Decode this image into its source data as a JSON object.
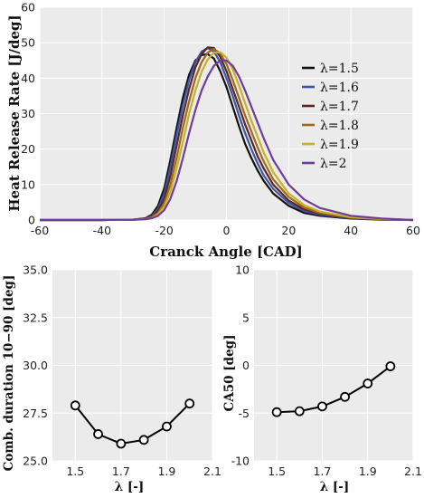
{
  "chart_data": [
    {
      "type": "line",
      "title": "",
      "xlabel": "Cranck Angle [CAD]",
      "ylabel": "Heat Release Rate [J/deg]",
      "xlim": [
        -60,
        60
      ],
      "ylim": [
        0,
        60
      ],
      "xticks": [
        "-60",
        "-40",
        "-20",
        "0",
        "20",
        "40",
        "60"
      ],
      "yticks": [
        "0",
        "10",
        "20",
        "30",
        "40",
        "50",
        "60"
      ],
      "grid": true,
      "legend_position": "right",
      "series": [
        {
          "name": "λ=1.5",
          "color": "#111111",
          "x": [
            -60,
            -40,
            -30,
            -26,
            -24,
            -22,
            -20,
            -18,
            -16,
            -14,
            -12,
            -10,
            -8,
            -6,
            -4,
            -2,
            0,
            2,
            4,
            6,
            8,
            10,
            12,
            15,
            20,
            25,
            30,
            40,
            50,
            60
          ],
          "y": [
            0,
            0,
            0.1,
            0.5,
            1.5,
            4,
            9,
            17,
            26,
            34.5,
            41,
            45,
            46.5,
            46.8,
            45.5,
            42,
            37.5,
            32,
            26.5,
            21.5,
            17.5,
            14,
            11,
            7.5,
            4,
            2,
            1.2,
            0.4,
            0.1,
            0
          ]
        },
        {
          "name": "λ=1.6",
          "color": "#3d55a8",
          "x": [
            -60,
            -40,
            -30,
            -26,
            -24,
            -22,
            -20,
            -18,
            -16,
            -14,
            -12,
            -10,
            -8,
            -6,
            -4,
            -2,
            0,
            2,
            4,
            6,
            8,
            10,
            12,
            15,
            20,
            25,
            30,
            40,
            50,
            60
          ],
          "y": [
            0,
            0,
            0.1,
            0.4,
            1.2,
            3.2,
            7.5,
            15,
            24,
            32.5,
            39.5,
            44.5,
            47.5,
            48.5,
            47.5,
            44.5,
            40,
            35,
            29.5,
            24.5,
            20,
            16,
            12.5,
            8.8,
            4.8,
            2.5,
            1.5,
            0.5,
            0.2,
            0
          ]
        },
        {
          "name": "λ=1.7",
          "color": "#5a2525",
          "x": [
            -60,
            -40,
            -30,
            -26,
            -24,
            -22,
            -20,
            -18,
            -16,
            -14,
            -12,
            -10,
            -8,
            -6,
            -4,
            -2,
            0,
            2,
            4,
            6,
            8,
            10,
            12,
            15,
            20,
            25,
            30,
            40,
            50,
            60
          ],
          "y": [
            0,
            0,
            0.1,
            0.3,
            1,
            2.6,
            6,
            12.5,
            21,
            29.5,
            37,
            43,
            46.8,
            48.7,
            48.5,
            46,
            42,
            37,
            32,
            27,
            22.5,
            18,
            14.5,
            10,
            5.5,
            3,
            1.8,
            0.6,
            0.2,
            0
          ]
        },
        {
          "name": "λ=1.8",
          "color": "#9b6a1a",
          "x": [
            -60,
            -40,
            -30,
            -26,
            -24,
            -22,
            -20,
            -18,
            -16,
            -14,
            -12,
            -10,
            -8,
            -6,
            -4,
            -2,
            0,
            2,
            4,
            6,
            8,
            10,
            12,
            15,
            20,
            25,
            30,
            40,
            50,
            60
          ],
          "y": [
            0,
            0,
            0.1,
            0.3,
            0.8,
            2,
            4.8,
            10,
            17.5,
            26,
            33.5,
            40,
            44.5,
            47.2,
            48.2,
            47,
            44,
            39.5,
            34.5,
            29.5,
            25,
            20.5,
            16.5,
            11.5,
            6.5,
            3.5,
            2,
            0.7,
            0.2,
            0
          ]
        },
        {
          "name": "λ=1.9",
          "color": "#c8b028",
          "x": [
            -60,
            -40,
            -30,
            -26,
            -24,
            -22,
            -20,
            -18,
            -16,
            -14,
            -12,
            -10,
            -8,
            -6,
            -4,
            -2,
            0,
            2,
            4,
            6,
            8,
            10,
            12,
            15,
            20,
            25,
            30,
            40,
            50,
            60
          ],
          "y": [
            0,
            0,
            0.1,
            0.2,
            0.6,
            1.6,
            3.8,
            8,
            14.5,
            22,
            30,
            36.5,
            41.8,
            45.3,
            47.2,
            47.3,
            45.8,
            42.5,
            38,
            33,
            28,
            23.5,
            19,
            13.5,
            7.5,
            4.2,
            2.4,
            0.8,
            0.3,
            0
          ]
        },
        {
          "name": "λ=2",
          "color": "#6e3c99",
          "x": [
            -60,
            -40,
            -30,
            -26,
            -24,
            -22,
            -20,
            -18,
            -16,
            -14,
            -12,
            -10,
            -8,
            -6,
            -4,
            -2,
            0,
            2,
            4,
            6,
            8,
            10,
            12,
            15,
            20,
            25,
            30,
            40,
            50,
            60
          ],
          "y": [
            0,
            0,
            0.1,
            0.2,
            0.5,
            1.2,
            2.8,
            6,
            11,
            17.5,
            24.5,
            31,
            36.5,
            40.5,
            43.5,
            45,
            45,
            43.5,
            40.5,
            36.5,
            32,
            27.5,
            23,
            17,
            10,
            5.8,
            3.4,
            1.2,
            0.4,
            0
          ]
        }
      ]
    },
    {
      "type": "line",
      "title": "",
      "xlabel": "λ [-]",
      "ylabel": "Comb. duration 10−90 [deg]",
      "xlim": [
        1.4,
        2.1
      ],
      "ylim": [
        25.0,
        35.0
      ],
      "xticks": [
        "1.5",
        "1.7",
        "1.9",
        "2.1"
      ],
      "yticks": [
        "25.0",
        "27.5",
        "30.0",
        "32.5",
        "35.0"
      ],
      "grid": true,
      "x": [
        1.5,
        1.6,
        1.7,
        1.8,
        1.9,
        2.0
      ],
      "y": [
        27.9,
        26.4,
        25.9,
        26.1,
        26.8,
        28.0
      ]
    },
    {
      "type": "line",
      "title": "",
      "xlabel": "λ [-]",
      "ylabel": "CA50 [deg]",
      "xlim": [
        1.4,
        2.1
      ],
      "ylim": [
        -10,
        10
      ],
      "xticks": [
        "1.5",
        "1.7",
        "1.9",
        "2.1"
      ],
      "yticks": [
        "-10",
        "-5",
        "0",
        "5",
        "10"
      ],
      "grid": true,
      "x": [
        1.5,
        1.6,
        1.7,
        1.8,
        1.9,
        2.0
      ],
      "y": [
        -4.9,
        -4.8,
        -4.3,
        -3.3,
        -1.9,
        -0.1
      ]
    }
  ]
}
